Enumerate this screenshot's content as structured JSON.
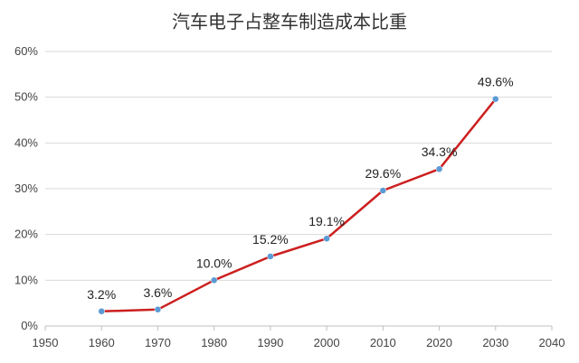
{
  "chart_data": {
    "type": "line",
    "title": "汽车电子占整车制造成本比重",
    "xlabel": "",
    "ylabel": "",
    "xlim": [
      1950,
      2040
    ],
    "ylim": [
      0,
      60
    ],
    "x_ticks": [
      "1950",
      "1960",
      "1970",
      "1980",
      "1990",
      "2000",
      "2010",
      "2020",
      "2030",
      "2040"
    ],
    "y_ticks": [
      "0%",
      "10%",
      "20%",
      "30%",
      "40%",
      "50%",
      "60%"
    ],
    "grid": "horizontal",
    "legend": "none",
    "line_color": "#cc1f1f",
    "marker_color": "#5b9bd5",
    "series": [
      {
        "x": [
          1960,
          1970,
          1980,
          1990,
          2000,
          2010,
          2020,
          2030
        ],
        "values": [
          3.2,
          3.6,
          10.0,
          15.2,
          19.1,
          29.6,
          34.3,
          49.6
        ],
        "labels": [
          "3.2%",
          "3.6%",
          "10.0%",
          "15.2%",
          "19.1%",
          "29.6%",
          "34.3%",
          "49.6%"
        ]
      }
    ]
  }
}
